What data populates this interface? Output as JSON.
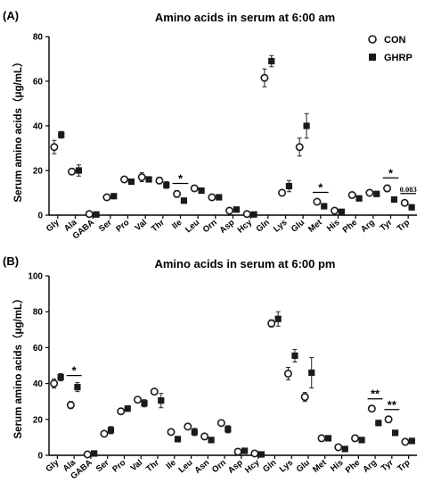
{
  "legend": [
    {
      "name": "CON",
      "marker": "open-circle"
    },
    {
      "name": "GHRP",
      "marker": "filled-square"
    }
  ],
  "colors": {
    "marker": "#1a1a1a",
    "axis": "#000000"
  },
  "chart_data": [
    {
      "type": "scatter",
      "panel_label": "(A)",
      "title": "Amino acids in serum at 6:00 am",
      "ylabel": "Serum amino acids（μg/mL）",
      "xlabel": "",
      "ylim": [
        0,
        80
      ],
      "yticks": [
        0,
        20,
        40,
        60,
        80
      ],
      "legend_placement": "top-right",
      "categories": [
        "Gly",
        "Ala",
        "GABA",
        "Ser",
        "Pro",
        "Val",
        "Thr",
        "Ile",
        "Leu",
        "Orn",
        "Asp",
        "Hcy",
        "Gln",
        "Lys",
        "Glu",
        "Met",
        "His",
        "Phe",
        "Arg",
        "Tyr",
        "Trp"
      ],
      "series": [
        {
          "name": "CON",
          "values": [
            30.5,
            19.5,
            0.5,
            8,
            16,
            17,
            15.5,
            9.5,
            12,
            8,
            2,
            0.5,
            61.5,
            10,
            30.5,
            6,
            2,
            9,
            10,
            12,
            5.5
          ],
          "errors": [
            3,
            1,
            0.5,
            0.5,
            1,
            2,
            1.5,
            1.5,
            1,
            0.5,
            0.5,
            0.3,
            4,
            1,
            4,
            1,
            0.5,
            0.5,
            0.5,
            1.5,
            1
          ]
        },
        {
          "name": "GHRP",
          "values": [
            36,
            20,
            0.3,
            8.5,
            15,
            16,
            13.5,
            6.5,
            11,
            8,
            2.5,
            0.3,
            69,
            13,
            40,
            4,
            1.5,
            7.5,
            9.5,
            7,
            3.5
          ],
          "errors": [
            1.5,
            2.5,
            0.3,
            0.5,
            0.5,
            1,
            1.5,
            0.5,
            0.5,
            0.5,
            0.5,
            0.2,
            2.5,
            2.5,
            5.5,
            0.5,
            0.3,
            0.5,
            0.5,
            1,
            0.5
          ]
        }
      ],
      "significance": [
        {
          "category": "Ile",
          "label": "*"
        },
        {
          "category": "Met",
          "label": "*"
        },
        {
          "category": "Tyr",
          "label": "*"
        },
        {
          "category": "Trp",
          "label": "0.083"
        }
      ]
    },
    {
      "type": "scatter",
      "panel_label": "(B)",
      "title": "Amino acids in serum at 6:00 pm",
      "ylabel": "Serum amino acids（μg/mL）",
      "xlabel": "",
      "ylim": [
        0,
        100
      ],
      "yticks": [
        0,
        20,
        40,
        60,
        80,
        100
      ],
      "categories": [
        "Gly",
        "Ala",
        "GABA",
        "Ser",
        "Pro",
        "Val",
        "Thr",
        "Ile",
        "Leu",
        "Asn",
        "Orn",
        "Asp",
        "Hcy",
        "Gln",
        "Lys",
        "Glu",
        "Met",
        "His",
        "Phe",
        "Arg",
        "Tyr",
        "Trp"
      ],
      "series": [
        {
          "name": "CON",
          "values": [
            40,
            28,
            0.5,
            12,
            24.5,
            31,
            35.5,
            13,
            16,
            10.5,
            18,
            2,
            1,
            73.5,
            45.5,
            32.5,
            9.5,
            4.5,
            9.5,
            26,
            20,
            7.5
          ],
          "errors": [
            2.5,
            2,
            0.3,
            0.5,
            1,
            1,
            1.5,
            1,
            1,
            1,
            1,
            0.5,
            0.5,
            2,
            3.5,
            2.5,
            0.5,
            0.5,
            0.5,
            1.5,
            1.5,
            0.5
          ]
        },
        {
          "name": "GHRP",
          "values": [
            43.5,
            38,
            1,
            14,
            26,
            29,
            30.5,
            9,
            13,
            8.5,
            14.5,
            2.5,
            0.5,
            76,
            55.5,
            46,
            9.5,
            3.5,
            8.5,
            18,
            12.5,
            8
          ],
          "errors": [
            2,
            2.5,
            0.3,
            2,
            1.5,
            2,
            4,
            1.5,
            2,
            1,
            2,
            0.5,
            0.3,
            4,
            3.5,
            8.5,
            0.5,
            0.3,
            0.5,
            0.5,
            0.5,
            0.5
          ]
        }
      ],
      "significance": [
        {
          "category": "Ala",
          "label": "*"
        },
        {
          "category": "Arg",
          "label": "**"
        },
        {
          "category": "Tyr",
          "label": "**"
        }
      ]
    }
  ]
}
